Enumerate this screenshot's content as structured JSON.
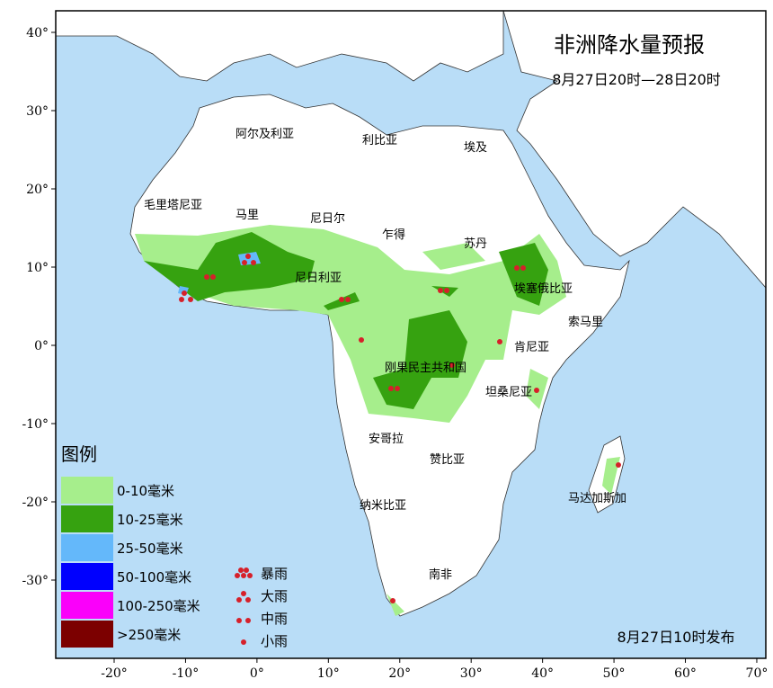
{
  "map": {
    "title": "非洲降水量预报",
    "subtitle": "8月27日20时—28日20时",
    "issued": "8月27日10时发布",
    "xticks": [
      {
        "value": -20,
        "label": "-20°"
      },
      {
        "value": -10,
        "label": "-10°"
      },
      {
        "value": 0,
        "label": "0°"
      },
      {
        "value": 10,
        "label": "10°"
      },
      {
        "value": 20,
        "label": "20°"
      },
      {
        "value": 30,
        "label": "30°"
      },
      {
        "value": 40,
        "label": "40°"
      },
      {
        "value": 50,
        "label": "50°"
      },
      {
        "value": 60,
        "label": "60°"
      },
      {
        "value": 70,
        "label": "70°"
      }
    ],
    "yticks": [
      {
        "value": 40,
        "label": "40°"
      },
      {
        "value": 30,
        "label": "30°"
      },
      {
        "value": 20,
        "label": "20°"
      },
      {
        "value": 10,
        "label": "10°"
      },
      {
        "value": 0,
        "label": "0°"
      },
      {
        "value": -10,
        "label": "-10°"
      },
      {
        "value": -20,
        "label": "-20°"
      },
      {
        "value": -30,
        "label": "-30°"
      }
    ],
    "countries": [
      "阿尔及利亚",
      "利比亚",
      "埃及",
      "毛里塔尼亚",
      "马里",
      "尼日尔",
      "乍得",
      "苏丹",
      "尼日利亚",
      "埃塞俄比亚",
      "索马里",
      "肯尼亚",
      "刚果民主共和国",
      "坦桑尼亚",
      "安哥拉",
      "赞比亚",
      "纳米比亚",
      "南非",
      "马达加斯加"
    ],
    "legend": {
      "title": "图例",
      "items": [
        {
          "label": "0-10毫米",
          "color": "#a6ee8c"
        },
        {
          "label": "10-25毫米",
          "color": "#36a210"
        },
        {
          "label": "25-50毫米",
          "color": "#64b8fa"
        },
        {
          "label": "50-100毫米",
          "color": "#0000fe"
        },
        {
          "label": "100-250毫米",
          "color": "#fa00fa"
        },
        {
          "label": ">250毫米",
          "color": "#7c0000"
        }
      ]
    },
    "symbols": [
      "暴雨",
      "大雨",
      "中雨",
      "小雨"
    ]
  }
}
